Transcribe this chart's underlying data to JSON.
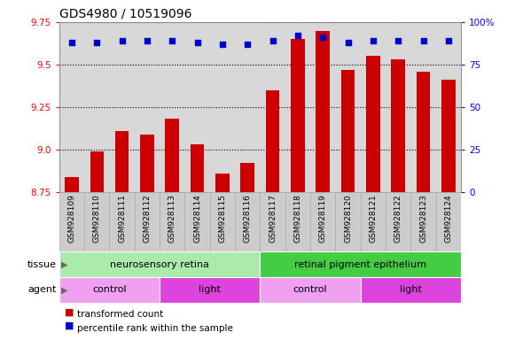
{
  "title": "GDS4980 / 10519096",
  "samples": [
    "GSM928109",
    "GSM928110",
    "GSM928111",
    "GSM928112",
    "GSM928113",
    "GSM928114",
    "GSM928115",
    "GSM928116",
    "GSM928117",
    "GSM928118",
    "GSM928119",
    "GSM928120",
    "GSM928121",
    "GSM928122",
    "GSM928123",
    "GSM928124"
  ],
  "bar_values": [
    8.84,
    8.99,
    9.11,
    9.09,
    9.18,
    9.03,
    8.86,
    8.92,
    9.35,
    9.65,
    9.7,
    9.47,
    9.55,
    9.53,
    9.46,
    9.41
  ],
  "dot_values": [
    88,
    88,
    89,
    89,
    89,
    88,
    87,
    87,
    89,
    92,
    91,
    88,
    89,
    89,
    89,
    89
  ],
  "ylim_left": [
    8.75,
    9.75
  ],
  "ylim_right": [
    0,
    100
  ],
  "yticks_left": [
    8.75,
    9.0,
    9.25,
    9.5,
    9.75
  ],
  "yticks_right": [
    0,
    25,
    50,
    75,
    100
  ],
  "bar_color": "#cc0000",
  "dot_color": "#0000cc",
  "plot_bg_color": "#d8d8d8",
  "xlabel_bg_color": "#c8c8c8",
  "tissue_labels": [
    {
      "text": "neurosensory retina",
      "start": 0,
      "end": 8,
      "color": "#aaeaaa"
    },
    {
      "text": "retinal pigment epithelium",
      "start": 8,
      "end": 16,
      "color": "#44cc44"
    }
  ],
  "agent_labels": [
    {
      "text": "control",
      "start": 0,
      "end": 4,
      "color": "#f0a0f0"
    },
    {
      "text": "light",
      "start": 4,
      "end": 8,
      "color": "#dd44dd"
    },
    {
      "text": "control",
      "start": 8,
      "end": 12,
      "color": "#f0a0f0"
    },
    {
      "text": "light",
      "start": 12,
      "end": 16,
      "color": "#dd44dd"
    }
  ],
  "legend_items": [
    {
      "label": "transformed count",
      "color": "#cc0000"
    },
    {
      "label": "percentile rank within the sample",
      "color": "#0000cc"
    }
  ]
}
